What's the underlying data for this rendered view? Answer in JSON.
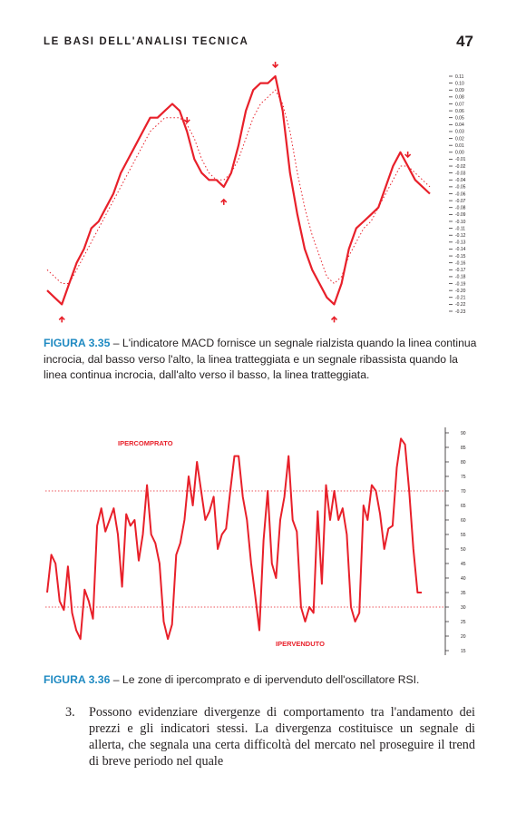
{
  "header": {
    "title": "LE BASI DELL'ANALISI TECNICA",
    "page_number": "47"
  },
  "figure_macd": {
    "caption_label": "FIGURA 3.35",
    "caption_text": " – L'indicatore MACD fornisce un segnale rialzista quando la linea continua incrocia, dal basso verso l'alto, la linea tratteggiata e un segnale ribassista quando la linea continua incrocia, dall'alto verso il basso, la linea tratteggiata.",
    "colors": {
      "solid": "#e8202a",
      "dotted": "#e8202a",
      "arrow": "#e8202a",
      "axis": "#231f20"
    }
  },
  "figure_rsi": {
    "caption_label": "FIGURA 3.36",
    "caption_text": " – Le zone di ipercomprato e di ipervenduto dell'oscillatore RSI.",
    "overbought_label": "IPERCOMPRATO",
    "oversold_label": "IPERVENDUTO",
    "colors": {
      "line": "#e8202a",
      "threshold": "#e8202a",
      "axis": "#231f20"
    }
  },
  "chart_data": [
    {
      "type": "line",
      "title": "",
      "xlabel": "",
      "ylabel": "",
      "ylim": [
        -0.23,
        0.11
      ],
      "y_ticks": [
        "0.11",
        "0.10",
        "0.09",
        "0.08",
        "0.07",
        "0.06",
        "0.05",
        "0.04",
        "0.03",
        "0.02",
        "0.01",
        "0.00",
        "-0.01",
        "-0.02",
        "-0.03",
        "-0.04",
        "-0.05",
        "-0.06",
        "-0.07",
        "-0.08",
        "-0.09",
        "-0.10",
        "-0.11",
        "-0.12",
        "-0.13",
        "-0.14",
        "-0.15",
        "-0.16",
        "-0.17",
        "-0.18",
        "-0.19",
        "-0.20",
        "-0.21",
        "-0.22",
        "-0.23"
      ],
      "series": [
        {
          "style": "solid",
          "values": [
            -0.2,
            -0.21,
            -0.22,
            -0.19,
            -0.16,
            -0.14,
            -0.11,
            -0.1,
            -0.08,
            -0.06,
            -0.03,
            -0.01,
            0.01,
            0.03,
            0.05,
            0.05,
            0.06,
            0.07,
            0.06,
            0.03,
            -0.01,
            -0.03,
            -0.04,
            -0.04,
            -0.05,
            -0.03,
            0.01,
            0.06,
            0.09,
            0.1,
            0.1,
            0.11,
            0.06,
            -0.03,
            -0.09,
            -0.14,
            -0.17,
            -0.19,
            -0.21,
            -0.22,
            -0.19,
            -0.14,
            -0.11,
            -0.1,
            -0.09,
            -0.08,
            -0.05,
            -0.02,
            0.0,
            -0.02,
            -0.04,
            -0.05,
            -0.06
          ]
        },
        {
          "style": "dotted",
          "values": [
            -0.17,
            -0.18,
            -0.19,
            -0.19,
            -0.17,
            -0.15,
            -0.13,
            -0.11,
            -0.09,
            -0.07,
            -0.05,
            -0.03,
            -0.01,
            0.01,
            0.03,
            0.04,
            0.05,
            0.05,
            0.05,
            0.04,
            0.02,
            -0.01,
            -0.03,
            -0.04,
            -0.04,
            -0.03,
            -0.01,
            0.02,
            0.05,
            0.07,
            0.08,
            0.09,
            0.07,
            0.03,
            -0.03,
            -0.08,
            -0.12,
            -0.15,
            -0.18,
            -0.19,
            -0.18,
            -0.15,
            -0.13,
            -0.11,
            -0.1,
            -0.08,
            -0.06,
            -0.04,
            -0.02,
            -0.02,
            -0.03,
            -0.04,
            -0.05
          ]
        }
      ],
      "signals": [
        {
          "index": 2,
          "direction": "up"
        },
        {
          "index": 19,
          "direction": "down"
        },
        {
          "index": 24,
          "direction": "up"
        },
        {
          "index": 31,
          "direction": "down"
        },
        {
          "index": 39,
          "direction": "up"
        },
        {
          "index": 49,
          "direction": "down"
        }
      ]
    },
    {
      "type": "line",
      "title": "",
      "xlabel": "",
      "ylabel": "",
      "ylim": [
        15,
        90
      ],
      "y_ticks": [
        "90",
        "85",
        "80",
        "75",
        "70",
        "65",
        "60",
        "55",
        "50",
        "45",
        "40",
        "35",
        "30",
        "25",
        "20",
        "15"
      ],
      "thresholds": [
        70,
        30
      ],
      "series": [
        {
          "style": "solid",
          "values": [
            35,
            48,
            45,
            32,
            29,
            44,
            28,
            22,
            19,
            36,
            32,
            26,
            58,
            64,
            56,
            60,
            64,
            55,
            37,
            62,
            58,
            60,
            46,
            55,
            72,
            55,
            52,
            45,
            25,
            19,
            24,
            48,
            52,
            60,
            75,
            65,
            80,
            70,
            60,
            63,
            68,
            50,
            55,
            57,
            70,
            82,
            82,
            68,
            60,
            45,
            34,
            22,
            53,
            70,
            45,
            40,
            60,
            68,
            82,
            60,
            56,
            30,
            25,
            30,
            28,
            63,
            38,
            72,
            60,
            70,
            60,
            64,
            55,
            30,
            25,
            28,
            65,
            60,
            72,
            70,
            62,
            50,
            57,
            58,
            78,
            88,
            86,
            70,
            50,
            35,
            35
          ]
        }
      ]
    }
  ],
  "body": {
    "item_number": "3.",
    "paragraph": "Possono evidenziare divergenze di comportamento tra l'andamento dei prezzi e gli indicatori stessi. La divergenza costituisce un segnale di allerta, che segnala una certa difficoltà del mercato nel proseguire il trend di breve periodo nel quale"
  }
}
